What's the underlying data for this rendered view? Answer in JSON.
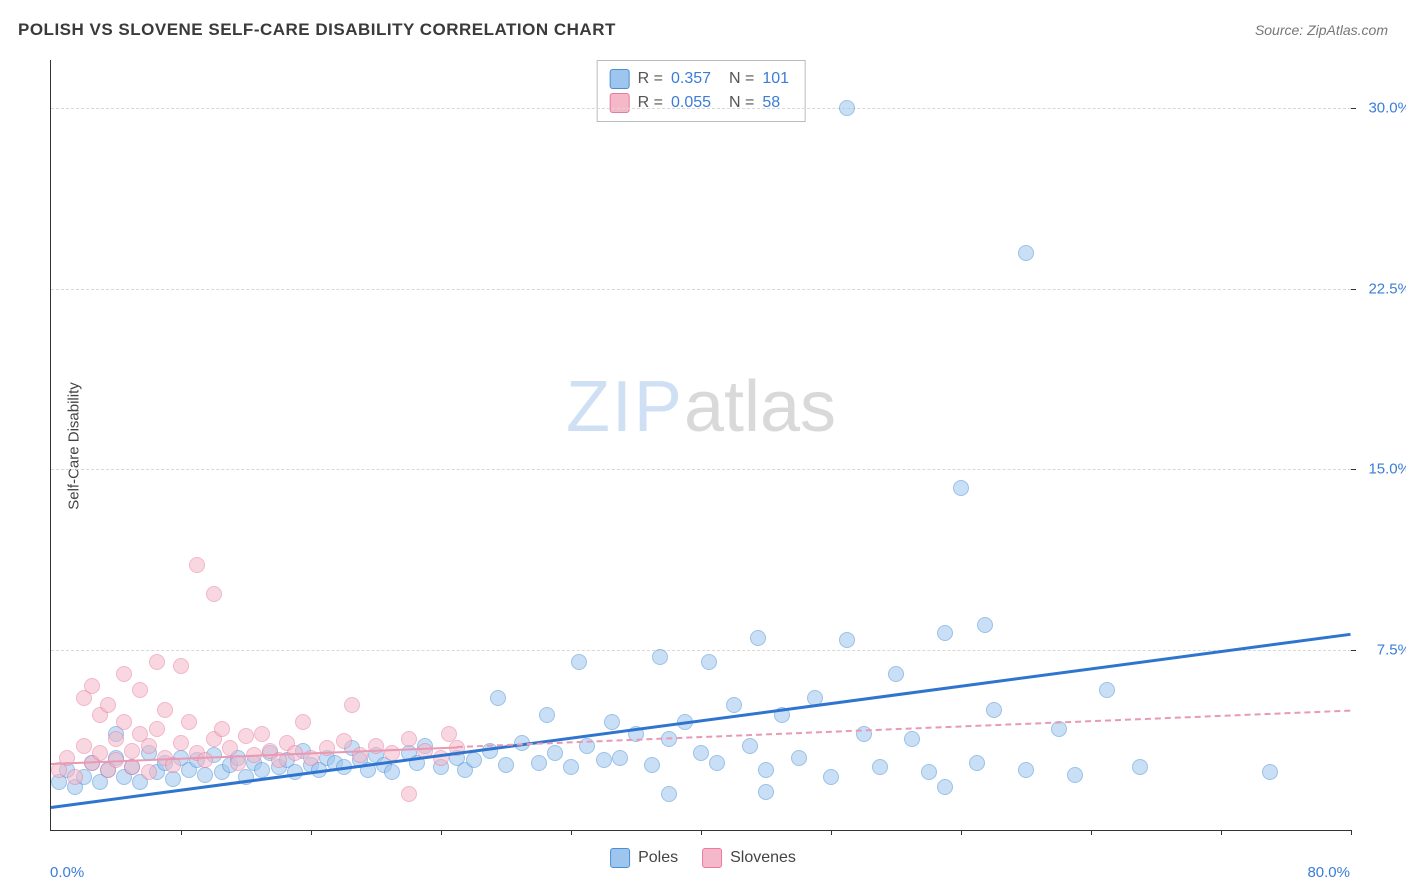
{
  "title": "POLISH VS SLOVENE SELF-CARE DISABILITY CORRELATION CHART",
  "source": "Source: ZipAtlas.com",
  "ylabel": "Self-Care Disability",
  "watermark_a": "ZIP",
  "watermark_b": "atlas",
  "chart": {
    "type": "scatter",
    "xlim": [
      0,
      80
    ],
    "ylim": [
      0,
      32
    ],
    "x_tick_step": 8,
    "y_ticks": [
      7.5,
      15.0,
      22.5,
      30.0
    ],
    "y_tick_labels": [
      "7.5%",
      "15.0%",
      "22.5%",
      "30.0%"
    ],
    "x_min_label": "0.0%",
    "x_max_label": "80.0%",
    "background_color": "#ffffff",
    "grid_color": "#d8d8d8",
    "axis_label_color": "#3b7dd8",
    "marker_radius": 8,
    "marker_opacity": 0.55
  },
  "series": [
    {
      "name": "Poles",
      "fill": "#9ec5ee",
      "stroke": "#4a8fd6",
      "trend_color": "#2f75d0",
      "trend_width": 3,
      "trend_dash": "solid",
      "R": "0.357",
      "N": "101",
      "trend_y_at_x0": 1.0,
      "trend_y_at_x80": 8.2,
      "trend_x_end": 80,
      "points": [
        [
          0.5,
          2.0
        ],
        [
          1.0,
          2.5
        ],
        [
          1.5,
          1.8
        ],
        [
          2.0,
          2.2
        ],
        [
          2.5,
          2.8
        ],
        [
          3.0,
          2.0
        ],
        [
          3.5,
          2.5
        ],
        [
          4.0,
          3.0
        ],
        [
          4.5,
          2.2
        ],
        [
          4.0,
          4.0
        ],
        [
          5.0,
          2.6
        ],
        [
          5.5,
          2.0
        ],
        [
          6.0,
          3.2
        ],
        [
          6.5,
          2.4
        ],
        [
          7.0,
          2.8
        ],
        [
          7.5,
          2.1
        ],
        [
          8.0,
          3.0
        ],
        [
          8.5,
          2.5
        ],
        [
          9.0,
          2.9
        ],
        [
          9.5,
          2.3
        ],
        [
          10.0,
          3.1
        ],
        [
          10.5,
          2.4
        ],
        [
          11.0,
          2.7
        ],
        [
          11.5,
          3.0
        ],
        [
          12.0,
          2.2
        ],
        [
          12.5,
          2.8
        ],
        [
          13.0,
          2.5
        ],
        [
          13.5,
          3.2
        ],
        [
          14.0,
          2.6
        ],
        [
          14.5,
          2.9
        ],
        [
          15.0,
          2.4
        ],
        [
          15.5,
          3.3
        ],
        [
          16.0,
          2.7
        ],
        [
          16.5,
          2.5
        ],
        [
          17.0,
          3.0
        ],
        [
          17.5,
          2.8
        ],
        [
          18.0,
          2.6
        ],
        [
          18.5,
          3.4
        ],
        [
          19.0,
          2.9
        ],
        [
          19.5,
          2.5
        ],
        [
          20.0,
          3.1
        ],
        [
          20.5,
          2.7
        ],
        [
          21.0,
          2.4
        ],
        [
          22.0,
          3.2
        ],
        [
          22.5,
          2.8
        ],
        [
          23.0,
          3.5
        ],
        [
          24.0,
          2.6
        ],
        [
          25.0,
          3.0
        ],
        [
          25.5,
          2.5
        ],
        [
          26.0,
          2.9
        ],
        [
          27.0,
          3.3
        ],
        [
          27.5,
          5.5
        ],
        [
          28.0,
          2.7
        ],
        [
          29.0,
          3.6
        ],
        [
          30.0,
          2.8
        ],
        [
          30.5,
          4.8
        ],
        [
          31.0,
          3.2
        ],
        [
          32.0,
          2.6
        ],
        [
          32.5,
          7.0
        ],
        [
          33.0,
          3.5
        ],
        [
          34.0,
          2.9
        ],
        [
          34.5,
          4.5
        ],
        [
          35.0,
          3.0
        ],
        [
          36.0,
          4.0
        ],
        [
          37.0,
          2.7
        ],
        [
          37.5,
          7.2
        ],
        [
          38.0,
          3.8
        ],
        [
          38.0,
          1.5
        ],
        [
          39.0,
          4.5
        ],
        [
          40.0,
          3.2
        ],
        [
          40.5,
          7.0
        ],
        [
          41.0,
          2.8
        ],
        [
          42.0,
          5.2
        ],
        [
          43.0,
          3.5
        ],
        [
          43.5,
          8.0
        ],
        [
          44.0,
          2.5
        ],
        [
          45.0,
          4.8
        ],
        [
          46.0,
          3.0
        ],
        [
          47.0,
          5.5
        ],
        [
          48.0,
          2.2
        ],
        [
          49.0,
          7.9
        ],
        [
          50.0,
          4.0
        ],
        [
          51.0,
          2.6
        ],
        [
          52.0,
          6.5
        ],
        [
          53.0,
          3.8
        ],
        [
          54.0,
          2.4
        ],
        [
          55.0,
          8.2
        ],
        [
          56.0,
          14.2
        ],
        [
          57.0,
          2.8
        ],
        [
          57.5,
          8.5
        ],
        [
          58.0,
          5.0
        ],
        [
          60.0,
          2.5
        ],
        [
          62.0,
          4.2
        ],
        [
          63.0,
          2.3
        ],
        [
          65.0,
          5.8
        ],
        [
          67.0,
          2.6
        ],
        [
          49.0,
          30.0
        ],
        [
          60.0,
          24.0
        ],
        [
          75.0,
          2.4
        ],
        [
          55.0,
          1.8
        ],
        [
          44.0,
          1.6
        ]
      ]
    },
    {
      "name": "Slovenes",
      "fill": "#f5b8c9",
      "stroke": "#e77aa0",
      "trend_color": "#e89ab3",
      "trend_width": 2,
      "trend_dash_solid_until": 25,
      "trend_dash": "dashed",
      "R": "0.055",
      "N": "58",
      "trend_y_at_x0": 2.8,
      "trend_y_at_x80": 5.0,
      "trend_x_end": 80,
      "points": [
        [
          0.5,
          2.5
        ],
        [
          1.0,
          3.0
        ],
        [
          1.5,
          2.2
        ],
        [
          2.0,
          3.5
        ],
        [
          2.0,
          5.5
        ],
        [
          2.5,
          2.8
        ],
        [
          2.5,
          6.0
        ],
        [
          3.0,
          3.2
        ],
        [
          3.0,
          4.8
        ],
        [
          3.5,
          2.5
        ],
        [
          3.5,
          5.2
        ],
        [
          4.0,
          3.8
        ],
        [
          4.0,
          2.9
        ],
        [
          4.5,
          4.5
        ],
        [
          4.5,
          6.5
        ],
        [
          5.0,
          3.3
        ],
        [
          5.0,
          2.6
        ],
        [
          5.5,
          4.0
        ],
        [
          5.5,
          5.8
        ],
        [
          6.0,
          3.5
        ],
        [
          6.0,
          2.4
        ],
        [
          6.5,
          4.2
        ],
        [
          6.5,
          7.0
        ],
        [
          7.0,
          3.0
        ],
        [
          7.0,
          5.0
        ],
        [
          7.5,
          2.7
        ],
        [
          8.0,
          3.6
        ],
        [
          8.0,
          6.8
        ],
        [
          8.5,
          4.5
        ],
        [
          9.0,
          3.2
        ],
        [
          9.0,
          11.0
        ],
        [
          9.5,
          2.9
        ],
        [
          10.0,
          3.8
        ],
        [
          10.0,
          9.8
        ],
        [
          10.5,
          4.2
        ],
        [
          11.0,
          3.4
        ],
        [
          11.5,
          2.8
        ],
        [
          12.0,
          3.9
        ],
        [
          12.5,
          3.1
        ],
        [
          13.0,
          4.0
        ],
        [
          13.5,
          3.3
        ],
        [
          14.0,
          2.9
        ],
        [
          14.5,
          3.6
        ],
        [
          15.0,
          3.2
        ],
        [
          15.5,
          4.5
        ],
        [
          16.0,
          3.0
        ],
        [
          17.0,
          3.4
        ],
        [
          18.0,
          3.7
        ],
        [
          18.5,
          5.2
        ],
        [
          19.0,
          3.1
        ],
        [
          20.0,
          3.5
        ],
        [
          21.0,
          3.2
        ],
        [
          22.0,
          3.8
        ],
        [
          22.0,
          1.5
        ],
        [
          23.0,
          3.3
        ],
        [
          24.0,
          3.0
        ],
        [
          24.5,
          4.0
        ],
        [
          25.0,
          3.4
        ]
      ]
    }
  ],
  "legend_bottom": [
    {
      "label": "Poles",
      "fill": "#9ec5ee",
      "stroke": "#4a8fd6"
    },
    {
      "label": "Slovenes",
      "fill": "#f5b8c9",
      "stroke": "#e77aa0"
    }
  ]
}
